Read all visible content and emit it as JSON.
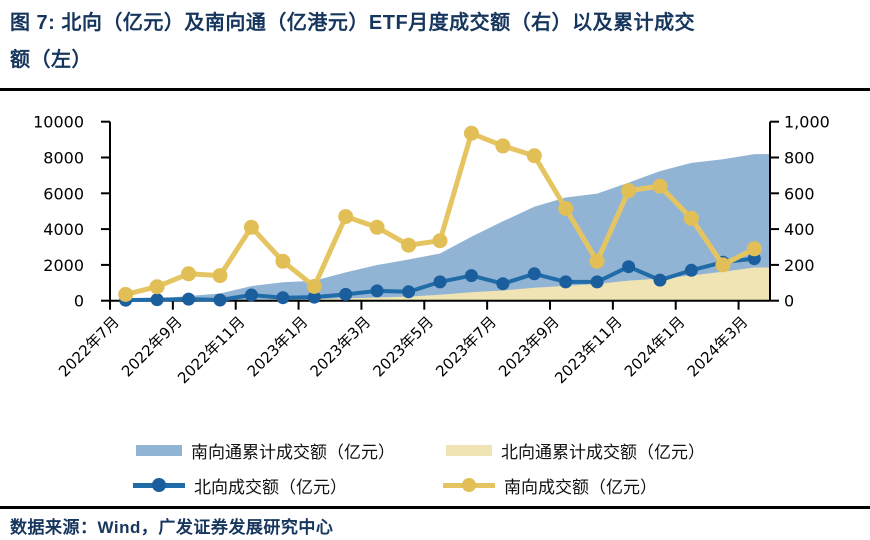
{
  "figure": {
    "title_lines": [
      "图 7: 北向（亿元）及南向通（亿港元）ETF月度成交额（右）以及累计成交",
      "额（左）"
    ],
    "source": "数据来源：Wind，广发证券发展研究中心"
  },
  "colors": {
    "title_navy": "#17365D",
    "area_south": "#92B4D4",
    "area_north": "#F0E4B4",
    "line_north": "#206CA8",
    "dot_north": "#1A5E9D",
    "line_south": "#E5C561",
    "dot_south": "#E2BF56",
    "axis_black": "#000000"
  },
  "chart_data": {
    "type": "area-line-combo",
    "x_tick_labels": [
      "2022年7月",
      "2022年9月",
      "2022年11月",
      "2023年1月",
      "2023年3月",
      "2023年5月",
      "2023年7月",
      "2023年9月",
      "2023年11月",
      "2024年1月",
      "2024年3月"
    ],
    "n_points": 21,
    "left_axis": {
      "min": 0,
      "max": 10000,
      "tick_labels": [
        "0",
        "2000",
        "4000",
        "6000",
        "8000",
        "10000"
      ]
    },
    "right_axis": {
      "min": 0,
      "max": 1000,
      "tick_labels": [
        "0",
        "200",
        "400",
        "600",
        "800",
        "1,000"
      ]
    },
    "legend_position": "bottom",
    "grid": false,
    "series": [
      {
        "name": "南向通累计成交额（亿元）",
        "type": "area",
        "axis": "left",
        "color_key": "area_south",
        "values": [
          35,
          113,
          263,
          403,
          813,
          1033,
          1113,
          1583,
          1993,
          2303,
          2638,
          3573,
          4438,
          5248,
          5763,
          5983,
          6598,
          7238,
          7698,
          7898,
          8188
        ]
      },
      {
        "name": "北向通累计成交额（亿元）",
        "type": "area",
        "axis": "left",
        "color_key": "area_north",
        "values": [
          3,
          9,
          18,
          22,
          54,
          71,
          91,
          126,
          181,
          231,
          336,
          476,
          571,
          721,
          826,
          931,
          1121,
          1236,
          1406,
          1621,
          1856
        ]
      },
      {
        "name": "北向成交额（亿元）",
        "type": "line",
        "axis": "right",
        "color_key": "line_north",
        "dot_color_key": "dot_north",
        "values": [
          3,
          6,
          9,
          4,
          32,
          17,
          20,
          35,
          55,
          50,
          105,
          140,
          95,
          150,
          105,
          105,
          190,
          115,
          170,
          215,
          235
        ]
      },
      {
        "name": "南向成交额（亿元）",
        "type": "line",
        "axis": "right",
        "color_key": "line_south",
        "dot_color_key": "dot_south",
        "values": [
          35,
          78,
          150,
          140,
          410,
          220,
          80,
          470,
          410,
          310,
          335,
          935,
          865,
          810,
          515,
          220,
          615,
          640,
          460,
          200,
          290
        ]
      }
    ]
  }
}
